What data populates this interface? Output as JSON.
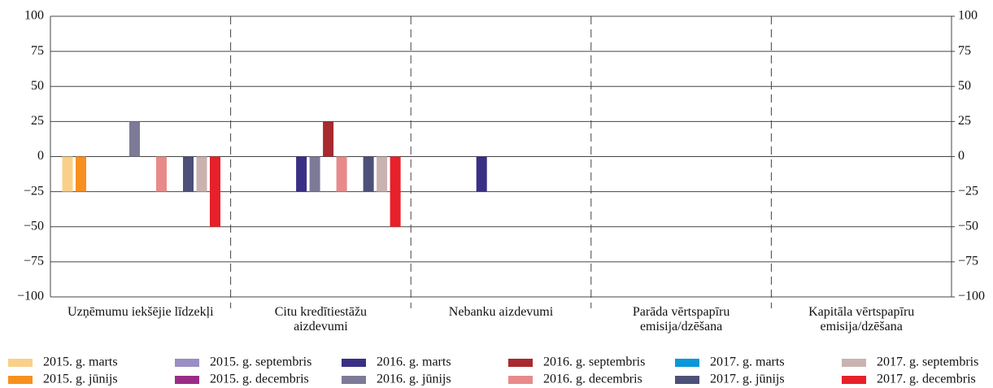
{
  "chart_data": {
    "type": "bar",
    "categories": [
      "Uzņēmumu iekšējie līdzekļi",
      "Citu kredītiestāžu aizdevumi",
      "Nebanku aizdevumi",
      "Parāda vērtspapīru emisija/dzēšana",
      "Kapitāla vērtspapīru emisija/dzēšana"
    ],
    "series": [
      {
        "name": "2015. g. marts",
        "color": "#f9d08a",
        "values": [
          -25,
          0,
          0,
          0,
          0
        ]
      },
      {
        "name": "2015. g. jūnijs",
        "color": "#f7901e",
        "values": [
          -25,
          0,
          0,
          0,
          0
        ]
      },
      {
        "name": "2015. g. septembris",
        "color": "#9b8ec4",
        "values": [
          0,
          0,
          0,
          0,
          0
        ]
      },
      {
        "name": "2015. g. decembris",
        "color": "#9b2c86",
        "values": [
          0,
          0,
          0,
          0,
          0
        ]
      },
      {
        "name": "2016. g. marts",
        "color": "#3a2f85",
        "values": [
          0,
          -25,
          -25,
          0,
          0
        ]
      },
      {
        "name": "2016. g. jūnijs",
        "color": "#7d7a98",
        "values": [
          25,
          -25,
          0,
          0,
          0
        ]
      },
      {
        "name": "2016. g. septembris",
        "color": "#a8292e",
        "values": [
          0,
          25,
          0,
          0,
          0
        ]
      },
      {
        "name": "2016. g. decembris",
        "color": "#e88a8a",
        "values": [
          -25,
          -25,
          0,
          0,
          0
        ]
      },
      {
        "name": "2017. g. marts",
        "color": "#0a97d9",
        "values": [
          0,
          0,
          0,
          0,
          0
        ]
      },
      {
        "name": "2017. g. jūnijs",
        "color": "#4d5078",
        "values": [
          -25,
          -25,
          0,
          0,
          0
        ]
      },
      {
        "name": "2017. g. septembris",
        "color": "#c9b3b0",
        "values": [
          -25,
          -25,
          0,
          0,
          0
        ]
      },
      {
        "name": "2017. g. decembris",
        "color": "#e8202a",
        "values": [
          -50,
          -50,
          0,
          0,
          0
        ]
      }
    ],
    "ylim": [
      -100,
      100
    ],
    "yticks": [
      {
        "value": -100,
        "label": "−100"
      },
      {
        "value": -75,
        "label": "−75"
      },
      {
        "value": -50,
        "label": "−50"
      },
      {
        "value": -25,
        "label": "−25"
      },
      0,
      25,
      50,
      75,
      100
    ],
    "y2lim": [
      -100,
      100
    ],
    "y2ticks": [
      {
        "value": -100,
        "label": "−100"
      },
      {
        "value": -75,
        "label": "−75"
      },
      {
        "value": -50,
        "label": "−50"
      },
      {
        "value": -25,
        "label": "−25"
      },
      0,
      25,
      50,
      75,
      100
    ],
    "grid": true,
    "legend": "bottom"
  }
}
